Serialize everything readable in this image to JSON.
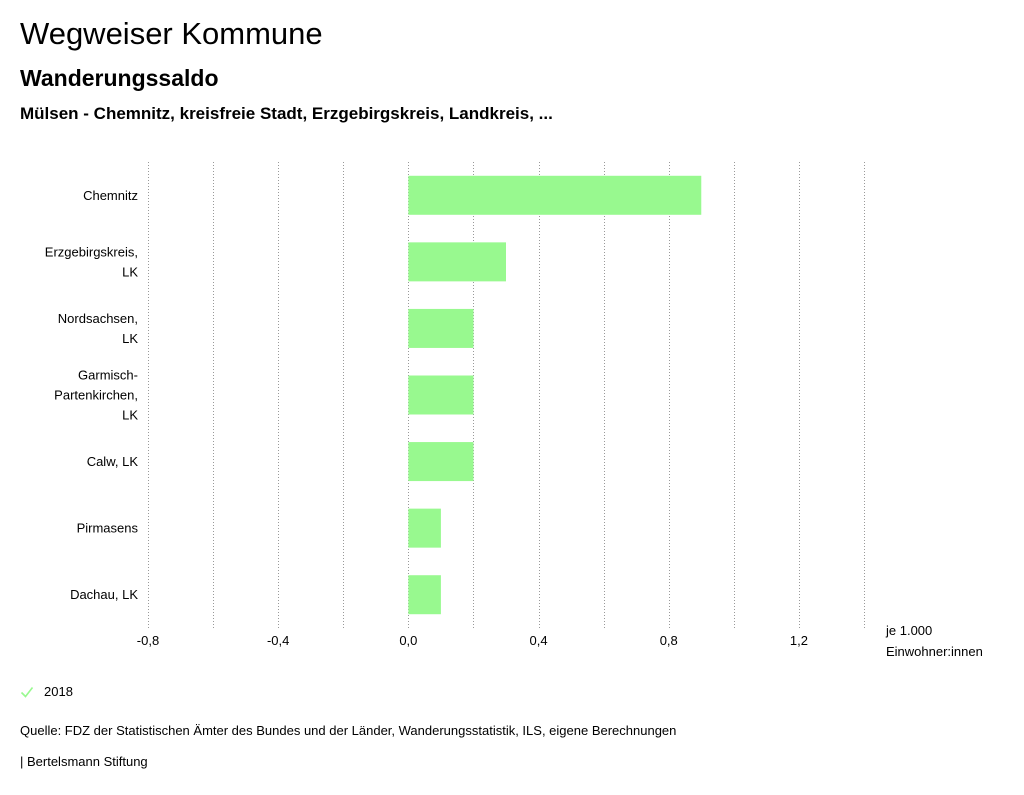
{
  "header": {
    "title": "Wegweiser Kommune",
    "subtitle": "Wanderungssaldo",
    "region": "Mülsen - Chemnitz, kreisfreie Stadt, Erzgebirgskreis, Landkreis, ..."
  },
  "chart_data": {
    "type": "bar",
    "orientation": "horizontal",
    "categories": [
      [
        "Chemnitz"
      ],
      [
        "Erzgebirgskreis,",
        "LK"
      ],
      [
        "Nordsachsen,",
        "LK"
      ],
      [
        "Garmisch-",
        "Partenkirchen,",
        "LK"
      ],
      [
        "Calw, LK"
      ],
      [
        "Pirmasens"
      ],
      [
        "Dachau, LK"
      ]
    ],
    "series": [
      {
        "name": "2018",
        "values": [
          0.9,
          0.3,
          0.2,
          0.2,
          0.2,
          0.1,
          0.1
        ]
      }
    ],
    "xlim": [
      -0.8,
      1.4
    ],
    "ticks": [
      -0.8,
      -0.4,
      0.0,
      0.4,
      0.8,
      1.2
    ],
    "tick_labels": [
      "-0,8",
      "-0,4",
      "0,0",
      "0,4",
      "0,8",
      "1,2"
    ],
    "gridlines": [
      -0.8,
      -0.6,
      -0.4,
      -0.2,
      0.0,
      0.2,
      0.4,
      0.6,
      0.8,
      1.0,
      1.2,
      1.4
    ],
    "grid": true,
    "unit_label": [
      "je 1.000",
      "Einwohner:innen"
    ],
    "bar_color": "#98f98f",
    "grid_color": "#999999"
  },
  "legend": {
    "label": "2018",
    "color": "#98f98f"
  },
  "footer": {
    "source": "Quelle: FDZ der Statistischen Ämter des Bundes und der Länder, Wanderungsstatistik, ILS, eigene Berechnungen",
    "credit": "| Bertelsmann Stiftung"
  }
}
